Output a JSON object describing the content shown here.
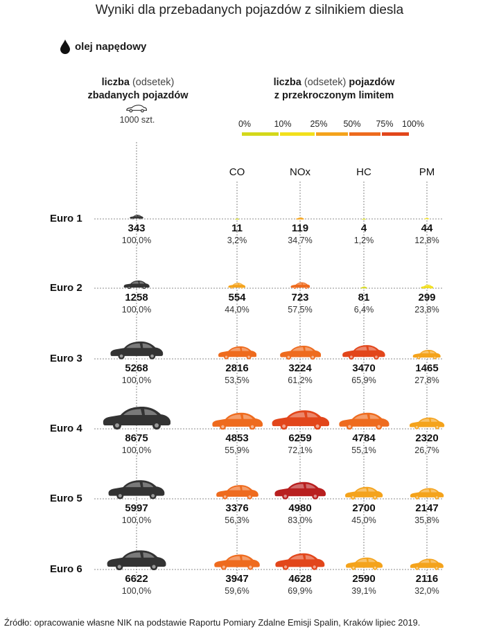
{
  "title": "Wyniki dla przebadanych  pojazdów z silnikiem diesla",
  "fuel_label": "olej napędowy",
  "left_header": {
    "bold1": "liczba",
    "thin": "(odsetek)",
    "line2": "zbadanych pojazdów"
  },
  "right_header": {
    "bold1": "liczba",
    "thin": "(odsetek)",
    "bold2": "pojazdów",
    "line2": "z przekroczonym limitem"
  },
  "unit_label": "1000 szt.",
  "scale": {
    "labels": [
      "0%",
      "10%",
      "25%",
      "50%",
      "75%",
      "100%"
    ],
    "colors": [
      "#d4d81a",
      "#f2e01c",
      "#f4a31c",
      "#ee6b1e",
      "#e2461b",
      "#b81f1f"
    ]
  },
  "colors": {
    "total_car": "#333333"
  },
  "source": "Źródło: opracowanie własne NIK na podstawie Raportu Pomiary Zdalne Emisji Spalin, Kraków lipiec 2019.",
  "chart_data": {
    "type": "table",
    "title": "Wyniki dla przebadanych  pojazdów z silnikiem diesla",
    "columns": [
      "CO",
      "NOx",
      "HC",
      "PM"
    ],
    "rows": [
      {
        "label": "Euro 1",
        "total": "343",
        "total_pct": "100,0%",
        "cells": [
          {
            "count": "11",
            "pct": "3,2%"
          },
          {
            "count": "119",
            "pct": "34,7%"
          },
          {
            "count": "4",
            "pct": "1,2%"
          },
          {
            "count": "44",
            "pct": "12,8%"
          }
        ]
      },
      {
        "label": "Euro 2",
        "total": "1258",
        "total_pct": "100,0%",
        "cells": [
          {
            "count": "554",
            "pct": "44,0%"
          },
          {
            "count": "723",
            "pct": "57,5%"
          },
          {
            "count": "81",
            "pct": "6,4%"
          },
          {
            "count": "299",
            "pct": "23,8%"
          }
        ]
      },
      {
        "label": "Euro 3",
        "total": "5268",
        "total_pct": "100,0%",
        "cells": [
          {
            "count": "2816",
            "pct": "53,5%"
          },
          {
            "count": "3224",
            "pct": "61,2%"
          },
          {
            "count": "3470",
            "pct": "65,9%"
          },
          {
            "count": "1465",
            "pct": "27,8%"
          }
        ]
      },
      {
        "label": "Euro 4",
        "total": "8675",
        "total_pct": "100,0%",
        "cells": [
          {
            "count": "4853",
            "pct": "55,9%"
          },
          {
            "count": "6259",
            "pct": "72,1%"
          },
          {
            "count": "4784",
            "pct": "55,1%"
          },
          {
            "count": "2320",
            "pct": "26,7%"
          }
        ]
      },
      {
        "label": "Euro 5",
        "total": "5997",
        "total_pct": "100,0%",
        "cells": [
          {
            "count": "3376",
            "pct": "56,3%"
          },
          {
            "count": "4980",
            "pct": "83,0%"
          },
          {
            "count": "2700",
            "pct": "45,0%"
          },
          {
            "count": "2147",
            "pct": "35,8%"
          }
        ]
      },
      {
        "label": "Euro 6",
        "total": "6622",
        "total_pct": "100,0%",
        "cells": [
          {
            "count": "3947",
            "pct": "59,6%"
          },
          {
            "count": "4628",
            "pct": "69,9%"
          },
          {
            "count": "2590",
            "pct": "39,1%"
          },
          {
            "count": "2116",
            "pct": "32,0%"
          }
        ]
      }
    ]
  }
}
